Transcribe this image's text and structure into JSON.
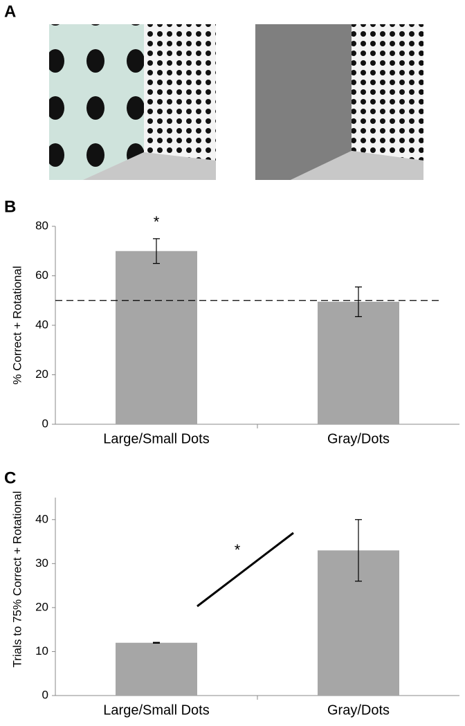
{
  "panels": [
    "A",
    "B",
    "C"
  ],
  "chart_data": [
    {
      "type": "bar",
      "ylabel": "% Correct + Rotational",
      "categories": [
        "Large/Small Dots",
        "Gray/Dots"
      ],
      "values": [
        70,
        49.5
      ],
      "errors": [
        5,
        6
      ],
      "color": "#a6a6a6",
      "ylim": [
        0,
        80
      ],
      "yticks": [
        0,
        20,
        40,
        60,
        80
      ],
      "reference_line": 50,
      "annotation": "*"
    },
    {
      "type": "bar",
      "ylabel": "Trials to 75% Correct + Rotational",
      "categories": [
        "Large/Small Dots",
        "Gray/Dots"
      ],
      "values": [
        12,
        33
      ],
      "errors": [
        0.1,
        7
      ],
      "color": "#a6a6a6",
      "ylim": [
        0,
        45
      ],
      "yticks": [
        0,
        10,
        20,
        30,
        40
      ],
      "annotation": "*"
    }
  ]
}
